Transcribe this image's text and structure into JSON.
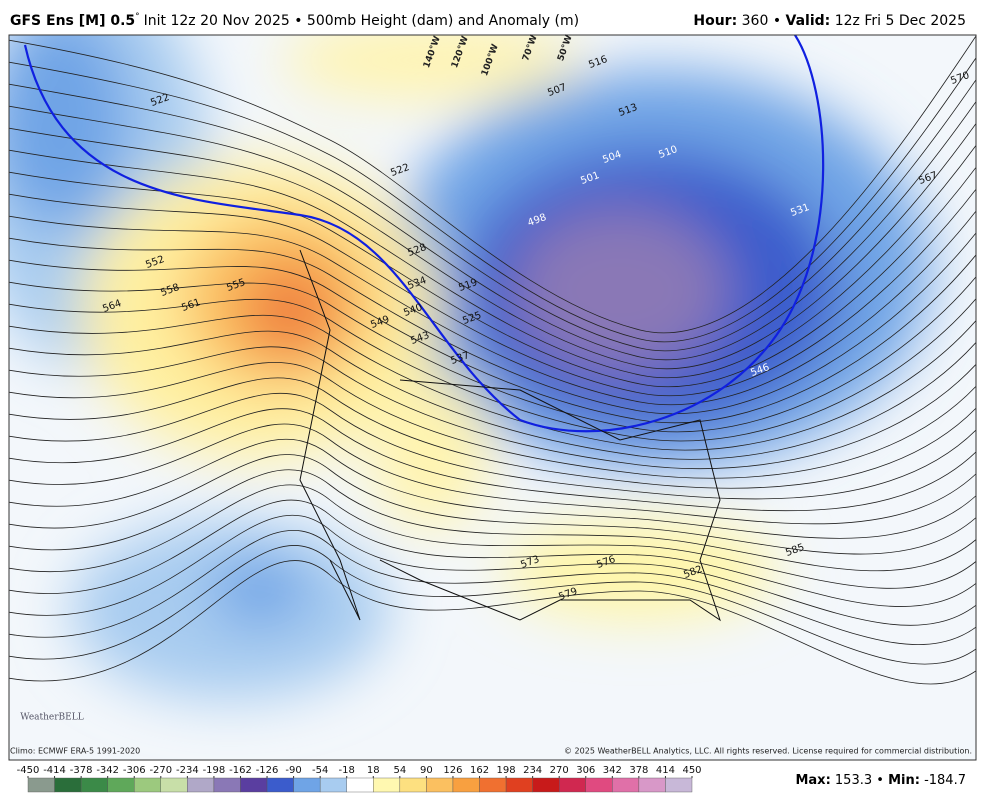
{
  "header": {
    "title": "GFS Ens [M] 0.5",
    "degree": "°",
    "description": "Init 12z 20 Nov 2025 • 500mb Height (dam) and Anomaly (m)",
    "hour_label": "Hour:",
    "hour": "360",
    "separator": "•",
    "valid_label": "Valid:",
    "valid": "12z Fri 5 Dec 2025"
  },
  "map": {
    "contour_labels": [
      522,
      552,
      558,
      555,
      564,
      561,
      522,
      528,
      534,
      540,
      543,
      549,
      519,
      525,
      537,
      516,
      507,
      513,
      504,
      501,
      498,
      510,
      531,
      546,
      567,
      570,
      573,
      576,
      579,
      582,
      585
    ],
    "longitude_labels": [
      "140°W",
      "120°W",
      "100°W",
      "70°W",
      "50°W"
    ],
    "logo": "WeatherBELL"
  },
  "footer": {
    "climo": "Climo: ECMWF ERA-5 1991-2020",
    "copyright": "© 2025 WeatherBELL Analytics, LLC. All rights reserved. License required for commercial distribution.",
    "stats": {
      "max_label": "Max:",
      "max": 153.3,
      "separator": "•",
      "min_label": "Min:",
      "min": -184.7
    }
  },
  "colorbar": {
    "ticks": [
      -450,
      -414,
      -378,
      -342,
      -306,
      -270,
      -234,
      -198,
      -162,
      -126,
      -90,
      -54,
      -18,
      18,
      54,
      90,
      126,
      162,
      198,
      234,
      270,
      306,
      342,
      378,
      414,
      450
    ],
    "colors": [
      "#8a9a8e",
      "#2a6e3a",
      "#3b8a48",
      "#5fa85a",
      "#9cc97e",
      "#c8dfa8",
      "#b0a8c8",
      "#8a78b6",
      "#5a3ea0",
      "#3b5ccc",
      "#6fa4e6",
      "#a8ccf0",
      "#ffffff",
      "#fff8b0",
      "#fde080",
      "#fbc060",
      "#f8a040",
      "#f07030",
      "#e04020",
      "#c81a1a",
      "#d02850",
      "#e04a80",
      "#e070a8",
      "#d898c8",
      "#c8b8d8"
    ]
  }
}
